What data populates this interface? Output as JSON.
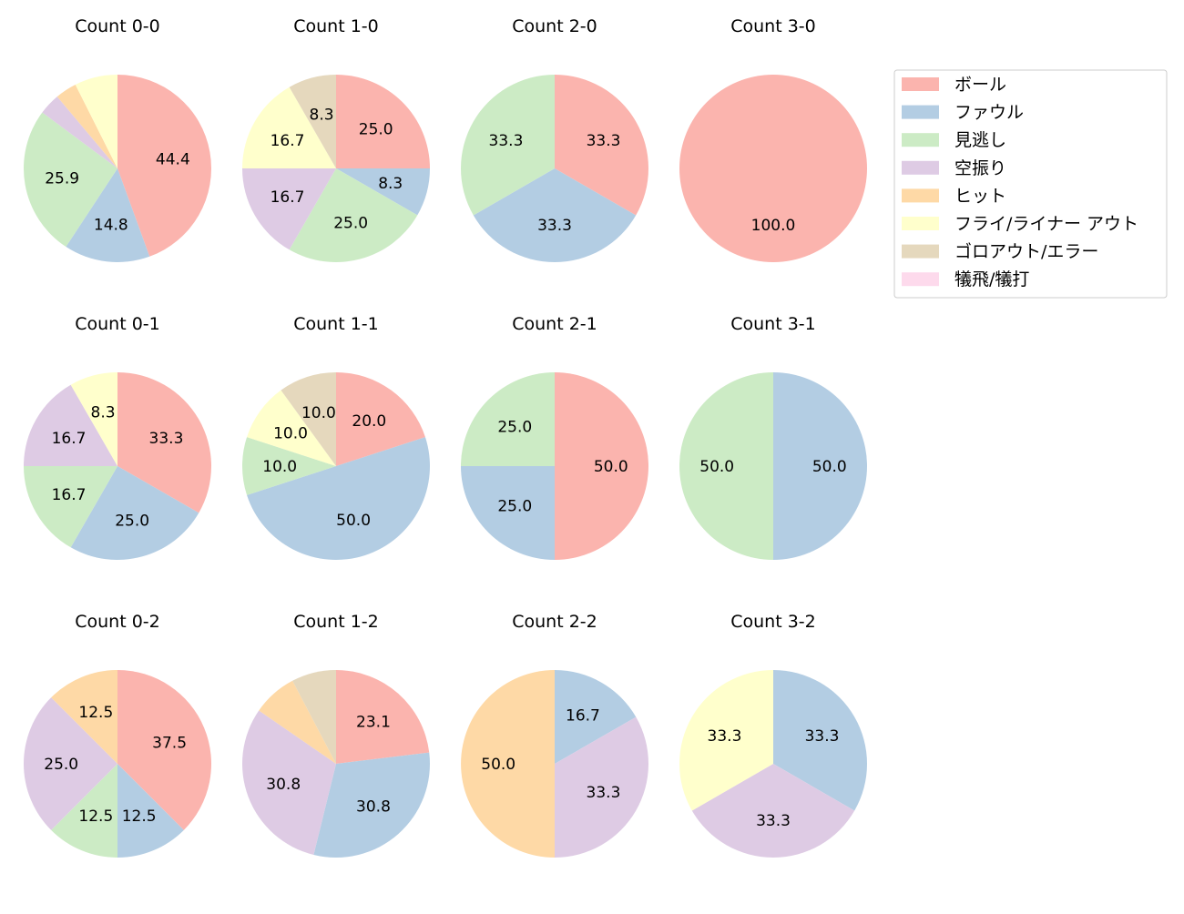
{
  "chart_data": {
    "type": "pie",
    "categories": [
      "ボール",
      "ファウル",
      "見逃し",
      "空振り",
      "ヒット",
      "フライ/ライナー アウト",
      "ゴロアウト/エラー",
      "犠飛/犠打"
    ],
    "colors": [
      "#fbb4ae",
      "#b3cde3",
      "#ccebc5",
      "#decbe4",
      "#fed9a6",
      "#ffffcc",
      "#e5d8bd",
      "#fddaec"
    ],
    "legend_position": "right",
    "start_angle": 90,
    "direction": "clockwise",
    "charts": [
      {
        "title": "Count 0-0",
        "values": [
          44.4,
          14.8,
          25.9,
          3.7,
          3.7,
          7.4,
          0,
          0
        ]
      },
      {
        "title": "Count 1-0",
        "values": [
          25.0,
          8.3,
          25.0,
          16.7,
          0,
          16.7,
          8.3,
          0
        ]
      },
      {
        "title": "Count 2-0",
        "values": [
          33.3,
          33.3,
          33.3,
          0,
          0,
          0,
          0,
          0
        ]
      },
      {
        "title": "Count 3-0",
        "values": [
          100.0,
          0,
          0,
          0,
          0,
          0,
          0,
          0
        ]
      },
      {
        "title": "Count 0-1",
        "values": [
          33.3,
          25.0,
          16.7,
          16.7,
          0,
          8.3,
          0,
          0
        ]
      },
      {
        "title": "Count 1-1",
        "values": [
          20.0,
          50.0,
          10.0,
          0,
          0,
          10.0,
          10.0,
          0
        ]
      },
      {
        "title": "Count 2-1",
        "values": [
          50.0,
          25.0,
          25.0,
          0,
          0,
          0,
          0,
          0
        ]
      },
      {
        "title": "Count 3-1",
        "values": [
          0,
          50.0,
          50.0,
          0,
          0,
          0,
          0,
          0
        ]
      },
      {
        "title": "Count 0-2",
        "values": [
          37.5,
          12.5,
          12.5,
          25.0,
          12.5,
          0,
          0,
          0
        ]
      },
      {
        "title": "Count 1-2",
        "values": [
          23.1,
          30.8,
          0,
          30.8,
          7.7,
          0,
          7.7,
          0
        ]
      },
      {
        "title": "Count 2-2",
        "values": [
          0,
          16.7,
          0,
          33.3,
          50.0,
          0,
          0,
          0
        ]
      },
      {
        "title": "Count 3-2",
        "values": [
          0,
          33.3,
          0,
          33.3,
          0,
          33.3,
          0,
          0
        ]
      }
    ]
  }
}
